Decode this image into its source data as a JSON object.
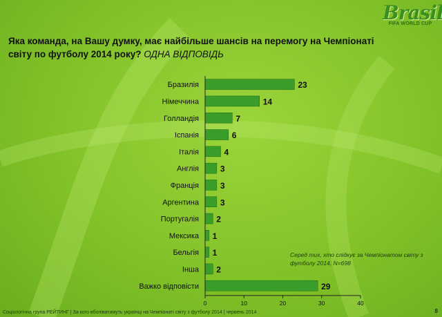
{
  "logo": {
    "word": "Brasil",
    "subtitle": "FIFA WORLD CUP"
  },
  "question": {
    "text": "Яка команда, на Вашу думку, має найбільше шансів на перемогу на Чемпіонаті світу по футболу 2014 року?",
    "response_type": "ОДНА ВІДПОВІДЬ"
  },
  "note": "Серед тих, хто слідкує за Чемпіонатом світу з футболу 2014, N=698",
  "footer": "Соціологічна група РЕЙТИНГ  |  За кого вболіватимуть українці на Чемпіонаті світу з футболу 2014  |  червень 2014",
  "page_number": "8",
  "colors": {
    "bar": "#3a9d2a",
    "bar_border": "#1f6b15",
    "text": "#111111",
    "axis": "#222222"
  },
  "chart_data": {
    "type": "bar",
    "orientation": "horizontal",
    "categories": [
      "Бразилія",
      "Німеччина",
      "Голландія",
      "Іспанія",
      "Італія",
      "Англія",
      "Франція",
      "Аргентина",
      "Португалія",
      "Мексика",
      "Бельгія",
      "Інша",
      "Важко відповісти"
    ],
    "values": [
      23,
      14,
      7,
      6,
      4,
      3,
      3,
      3,
      2,
      1,
      1,
      2,
      29
    ],
    "xlim": [
      0,
      40
    ],
    "xticks": [
      "0",
      "10",
      "20",
      "30",
      "40"
    ],
    "grid": false,
    "legend": "none"
  }
}
